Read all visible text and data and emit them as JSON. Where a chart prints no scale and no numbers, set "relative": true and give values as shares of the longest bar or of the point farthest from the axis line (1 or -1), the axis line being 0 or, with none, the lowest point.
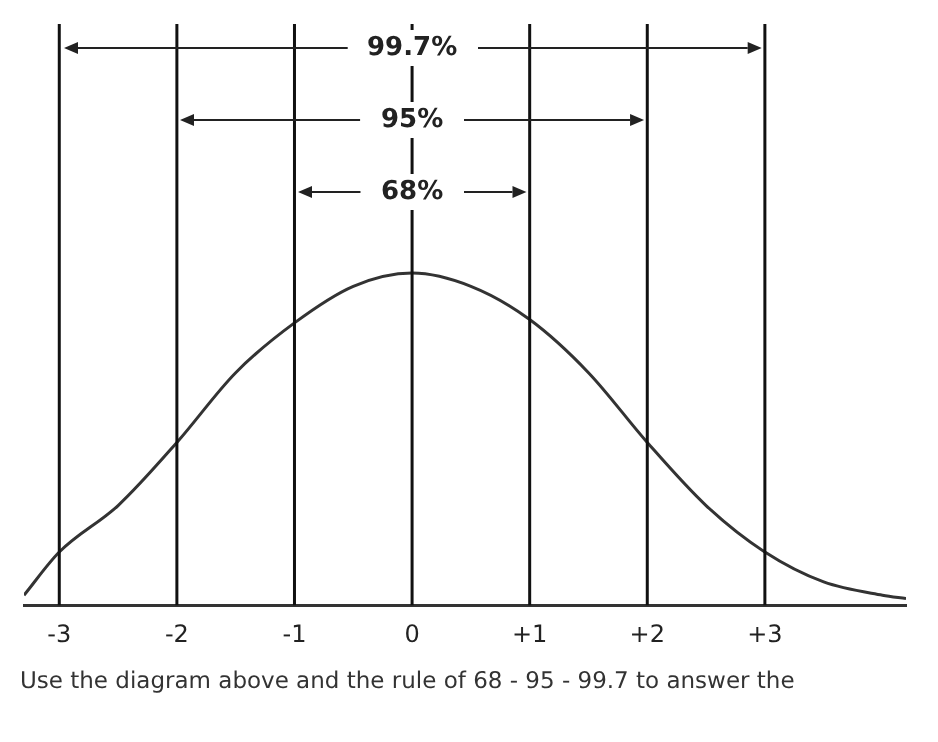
{
  "chart_data": {
    "type": "line",
    "relative": true,
    "x": [
      -3.3,
      -3,
      -2.5,
      -2,
      -1.5,
      -1,
      -0.5,
      0,
      0.5,
      1,
      1.5,
      2,
      2.5,
      3,
      3.5,
      4,
      4.2
    ],
    "series": [
      {
        "color": "#333333",
        "values": [
          0.03,
          0.16,
          0.3,
          0.49,
          0.7,
          0.85,
          0.96,
          1,
          0.96,
          0.86,
          0.7,
          0.49,
          0.3,
          0.16,
          0.07,
          0.03,
          0.02
        ]
      }
    ],
    "xlim": [
      -3.3,
      4.2
    ],
    "xticks": [
      -3,
      -2,
      -1,
      0,
      {
        "value": 1,
        "label": "+1"
      },
      {
        "value": 2,
        "label": "+2"
      },
      {
        "value": 3,
        "label": "+3"
      }
    ],
    "ref_lines": [
      {
        "axis": "x",
        "value": -3
      },
      {
        "axis": "x",
        "value": -2
      },
      {
        "axis": "x",
        "value": -1
      },
      {
        "axis": "x",
        "value": 0
      },
      {
        "axis": "x",
        "value": 1
      },
      {
        "axis": "x",
        "value": 2
      },
      {
        "axis": "x",
        "value": 3
      }
    ],
    "annotations": [
      "99.7%",
      "95%",
      "68%",
      "Use the diagram above and the rule of 68 - 95 - 99.7 to answer the"
    ],
    "grid": false,
    "legend": false,
    "marker": "none",
    "line_style": "solid"
  }
}
